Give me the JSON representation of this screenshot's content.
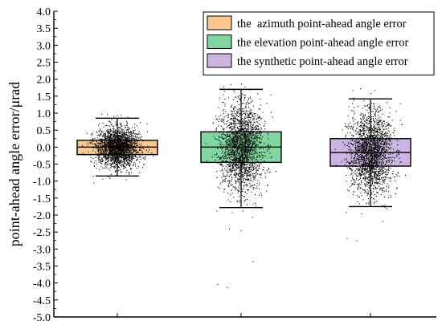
{
  "chart_data": {
    "type": "box",
    "ylabel": "point-ahead angle error/μrad",
    "xlabel": "",
    "title": "",
    "ylim": [
      -5.0,
      4.0
    ],
    "y_ticks": [
      "4.0",
      "3.5",
      "3.0",
      "2.5",
      "2.0",
      "1.5",
      "1.0",
      "0.5",
      "0.0",
      "-0.5",
      "-1.0",
      "-1.5",
      "-2.0",
      "-2.5",
      "-3.0",
      "-3.5",
      "-4.0",
      "-4.5",
      "-5.0"
    ],
    "y_tick_values": [
      4.0,
      3.5,
      3.0,
      2.5,
      2.0,
      1.5,
      1.0,
      0.5,
      0.0,
      -0.5,
      -1.0,
      -1.5,
      -2.0,
      -2.5,
      -3.0,
      -3.5,
      -4.0,
      -4.5,
      -5.0
    ],
    "grid": false,
    "legend_position": "top-right",
    "series": [
      {
        "name": "the  azimuth point-ahead angle error",
        "color": "#f9c98f",
        "q1": -0.22,
        "median": 0.0,
        "q3": 0.2,
        "whisker_low": -0.85,
        "whisker_high": 0.85,
        "scatter_sd": 0.28,
        "scatter_min": -1.1,
        "scatter_max": 1.0
      },
      {
        "name": "the elevation point-ahead angle error",
        "color": "#7fd6a0",
        "q1": -0.45,
        "median": 0.0,
        "q3": 0.45,
        "whisker_low": -1.78,
        "whisker_high": 1.7,
        "scatter_sd": 0.62,
        "scatter_min": -4.2,
        "scatter_max": 1.95
      },
      {
        "name": "the synthetic point-ahead angle error",
        "color": "#cdb5e3",
        "q1": -0.56,
        "median": -0.16,
        "q3": 0.25,
        "whisker_low": -1.75,
        "whisker_high": 1.42,
        "scatter_sd": 0.58,
        "scatter_min": -2.8,
        "scatter_max": 1.8
      }
    ]
  }
}
